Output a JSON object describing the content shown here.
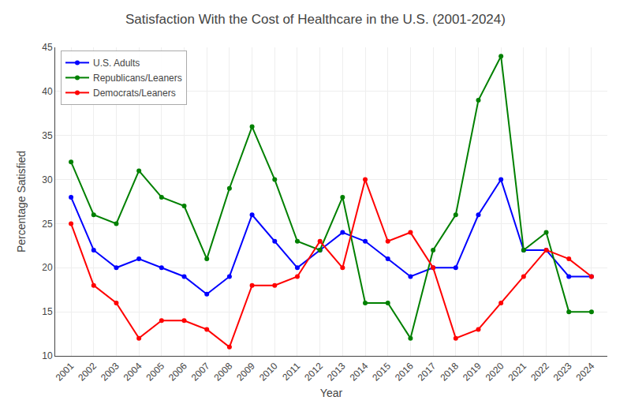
{
  "chart_data": {
    "type": "line",
    "title": "Satisfaction With the Cost of Healthcare in the U.S. (2001-2024)",
    "x_label": "Year",
    "y_label": "Percentage Satisfied",
    "x": [
      2001,
      2002,
      2003,
      2004,
      2005,
      2006,
      2007,
      2008,
      2009,
      2010,
      2011,
      2012,
      2013,
      2014,
      2015,
      2016,
      2017,
      2018,
      2019,
      2020,
      2021,
      2022,
      2023,
      2024
    ],
    "series": [
      {
        "name": "U.S. Adults",
        "color": "#0000ff",
        "values": [
          28,
          22,
          20,
          21,
          20,
          19,
          17,
          19,
          26,
          23,
          20,
          22,
          24,
          23,
          21,
          19,
          20,
          20,
          26,
          30,
          22,
          22,
          19,
          19
        ]
      },
      {
        "name": "Republicans/Leaners",
        "color": "#008000",
        "values": [
          32,
          26,
          25,
          31,
          28,
          27,
          21,
          29,
          36,
          30,
          23,
          22,
          28,
          16,
          16,
          12,
          22,
          26,
          39,
          44,
          22,
          24,
          15,
          15
        ]
      },
      {
        "name": "Democrats/Leaners",
        "color": "#ff0000",
        "values": [
          25,
          18,
          16,
          12,
          14,
          14,
          13,
          11,
          18,
          18,
          19,
          23,
          20,
          30,
          23,
          24,
          20,
          12,
          13,
          16,
          19,
          22,
          21,
          19
        ]
      }
    ],
    "xlim": [
      2000.3,
      2024.7
    ],
    "xticks": [
      2001,
      2002,
      2003,
      2004,
      2005,
      2006,
      2007,
      2008,
      2009,
      2010,
      2011,
      2012,
      2013,
      2014,
      2015,
      2016,
      2017,
      2018,
      2019,
      2020,
      2021,
      2022,
      2023,
      2024
    ],
    "ylim": [
      10,
      45
    ],
    "yticks": [
      10,
      15,
      20,
      25,
      30,
      35,
      40,
      45
    ],
    "grid": true,
    "legend": "upper left",
    "marker": "circle",
    "line_style": "solid"
  }
}
